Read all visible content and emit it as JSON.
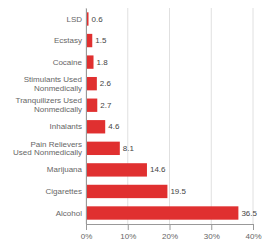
{
  "chart_data": {
    "type": "bar",
    "orientation": "horizontal",
    "categories": [
      "Alcohol",
      "Cigarettes",
      "Marijuana",
      "Pain Relievers\nUsed Nonmedically",
      "Inhalants",
      "Tranquilizers Used\nNonmedically",
      "Stimulants Used\nNonmedically",
      "Cocaine",
      "Ecstasy",
      "LSD"
    ],
    "values": [
      36.5,
      19.5,
      14.6,
      8.1,
      4.6,
      2.7,
      2.6,
      1.8,
      1.5,
      0.6
    ],
    "color": "#e03030",
    "xlim": [
      0,
      40
    ],
    "xticks": [
      {
        "value": 0,
        "label": "0%"
      },
      {
        "value": 10,
        "label": "10%"
      },
      {
        "value": 20,
        "label": "20%"
      },
      {
        "value": 30,
        "label": "30%"
      },
      {
        "value": 40,
        "label": "40%"
      }
    ],
    "grid": true,
    "data_labels": true
  }
}
